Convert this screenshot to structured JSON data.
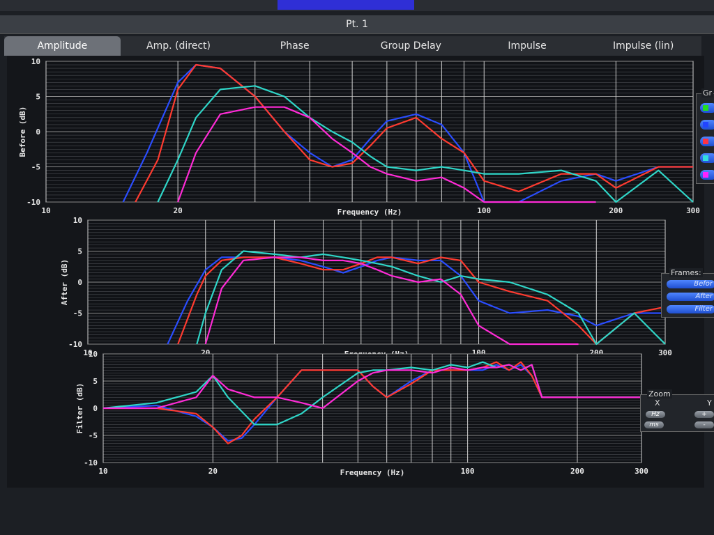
{
  "window": {
    "title": "Pt. 1"
  },
  "tabs": [
    {
      "label": "Amplitude",
      "active": true
    },
    {
      "label": "Amp. (direct)",
      "active": false
    },
    {
      "label": "Phase",
      "active": false
    },
    {
      "label": "Group Delay",
      "active": false
    },
    {
      "label": "Impulse",
      "active": false
    },
    {
      "label": "Impulse (lin)",
      "active": false
    }
  ],
  "graphs_panel": {
    "title": "Gr",
    "swatches": [
      "#22dd22",
      "#2244ff",
      "#ff3344",
      "#33dddd",
      "#ff22ff"
    ]
  },
  "frames_panel": {
    "title": "Frames:",
    "buttons": [
      "Befor",
      "After",
      "Filter"
    ]
  },
  "zoom_panel": {
    "title": "Zoom",
    "x_label": "X",
    "y_label": "Y",
    "x_buttons": [
      "Hz",
      "ms"
    ],
    "y_buttons": [
      "+",
      "-"
    ]
  },
  "chart_data": [
    {
      "type": "line",
      "ylabel": "Before (dB)",
      "xlabel": "Frequency (Hz)",
      "x_scale": "log",
      "xlim": [
        10,
        300
      ],
      "ylim": [
        -10,
        10
      ],
      "x_ticks": [
        "10",
        "20",
        "100",
        "200",
        "300"
      ],
      "y_ticks": [
        "10",
        "5",
        "0",
        "-5",
        "-10"
      ],
      "grid": true,
      "series": [
        {
          "color": "#2a4dff",
          "x": [
            15,
            17,
            20,
            22,
            25,
            30,
            35,
            40,
            45,
            50,
            55,
            60,
            70,
            80,
            90,
            100,
            120,
            150,
            180,
            200,
            250,
            300
          ],
          "y": [
            -10,
            -3,
            7,
            9.5,
            9,
            5,
            0,
            -3,
            -5,
            -4,
            -1,
            1.5,
            2.5,
            1,
            -3,
            -10,
            -10,
            -7,
            -6,
            -7,
            -5,
            -5
          ]
        },
        {
          "color": "#ff3b30",
          "x": [
            16,
            18,
            20,
            22,
            25,
            30,
            35,
            40,
            45,
            50,
            55,
            60,
            70,
            80,
            90,
            100,
            120,
            150,
            180,
            200,
            250,
            300
          ],
          "y": [
            -10,
            -4,
            6,
            9.5,
            9,
            5,
            0,
            -4,
            -5,
            -4.5,
            -2,
            0.5,
            2,
            -1,
            -3,
            -7,
            -8.5,
            -6,
            -6,
            -8,
            -5,
            -5
          ]
        },
        {
          "color": "#2fd6c8",
          "x": [
            18,
            20,
            22,
            25,
            30,
            35,
            40,
            45,
            50,
            55,
            60,
            70,
            80,
            90,
            100,
            120,
            150,
            180,
            200,
            250,
            300
          ],
          "y": [
            -10,
            -4,
            2,
            6,
            6.5,
            5,
            2,
            0,
            -1.5,
            -3.5,
            -5,
            -5.5,
            -5,
            -5.5,
            -6,
            -6,
            -5.5,
            -7,
            -10,
            -5.5,
            -10
          ]
        },
        {
          "color": "#ff2bd6",
          "x": [
            20,
            22,
            25,
            30,
            35,
            40,
            45,
            50,
            55,
            60,
            70,
            80,
            90,
            100,
            120,
            150,
            180
          ],
          "y": [
            -10,
            -3,
            2.5,
            3.5,
            3.5,
            2,
            -1,
            -3,
            -5,
            -6,
            -7,
            -6.5,
            -8,
            -10,
            -10,
            -10,
            -10
          ]
        }
      ]
    },
    {
      "type": "line",
      "ylabel": "After (dB)",
      "xlabel": "Frequency (Hz)",
      "x_scale": "log",
      "xlim": [
        10,
        300
      ],
      "ylim": [
        -10,
        10
      ],
      "x_ticks": [
        "10",
        "20",
        "100",
        "200",
        "300"
      ],
      "y_ticks": [
        "10",
        "5",
        "0",
        "-5",
        "-10"
      ],
      "grid": true,
      "series": [
        {
          "color": "#2a4dff",
          "x": [
            16,
            18,
            20,
            22,
            25,
            30,
            35,
            40,
            45,
            50,
            55,
            60,
            70,
            80,
            90,
            100,
            120,
            150,
            180,
            200,
            250,
            300
          ],
          "y": [
            -10,
            -3,
            2,
            4,
            4,
            4,
            3.5,
            2.5,
            1.5,
            2.5,
            3.5,
            4,
            3.5,
            3.5,
            1,
            -3,
            -5,
            -4.5,
            -5.5,
            -7,
            -5,
            -5
          ]
        },
        {
          "color": "#ff3b30",
          "x": [
            17,
            19,
            20,
            22,
            25,
            30,
            35,
            40,
            45,
            50,
            55,
            60,
            70,
            80,
            90,
            100,
            120,
            150,
            180,
            200,
            250,
            300
          ],
          "y": [
            -10,
            -2,
            1,
            3.5,
            4,
            4,
            3,
            2,
            2,
            3,
            4,
            4,
            3,
            4,
            3.5,
            0,
            -1.5,
            -3,
            -7,
            -10,
            -5,
            -4
          ]
        },
        {
          "color": "#2fd6c8",
          "x": [
            19,
            20,
            22,
            25,
            30,
            35,
            40,
            45,
            50,
            55,
            60,
            70,
            80,
            90,
            100,
            120,
            150,
            180,
            200,
            250,
            300
          ],
          "y": [
            -10,
            -5,
            2,
            5,
            4.5,
            4,
            4.5,
            4,
            3.5,
            3,
            2.5,
            1,
            0,
            1,
            0.5,
            0,
            -2,
            -5,
            -10,
            -5,
            -10
          ]
        },
        {
          "color": "#ff2bd6",
          "x": [
            20,
            22,
            25,
            30,
            35,
            40,
            45,
            50,
            55,
            60,
            70,
            80,
            90,
            100,
            120,
            150,
            180
          ],
          "y": [
            -10,
            -1,
            3.5,
            4,
            4,
            3.5,
            3.5,
            3,
            2,
            1,
            0,
            0.5,
            -2,
            -7,
            -10,
            -10,
            -10
          ]
        }
      ]
    },
    {
      "type": "line",
      "ylabel": "Filter (dB)",
      "xlabel": "Frequency (Hz)",
      "x_scale": "log",
      "xlim": [
        10,
        300
      ],
      "ylim": [
        -10,
        10
      ],
      "x_ticks": [
        "10",
        "20",
        "100",
        "200",
        "300"
      ],
      "y_ticks": [
        "10",
        "5",
        "0",
        "-5",
        "-10"
      ],
      "grid": true,
      "series": [
        {
          "color": "#2a4dff",
          "x": [
            10,
            14,
            18,
            20,
            22,
            24,
            26,
            30,
            35,
            40,
            50,
            55,
            60,
            70,
            80,
            90,
            100,
            110,
            120,
            130,
            140,
            150,
            160,
            180,
            200,
            250,
            300
          ],
          "y": [
            0,
            0.5,
            -1.5,
            -3.5,
            -6,
            -5.5,
            -3,
            2,
            7,
            7,
            7,
            4,
            2,
            5,
            7,
            7,
            7,
            7,
            8,
            7,
            8,
            6,
            2,
            2,
            2,
            2,
            2
          ]
        },
        {
          "color": "#ff3b30",
          "x": [
            10,
            14,
            18,
            20,
            22,
            24,
            26,
            30,
            35,
            40,
            50,
            55,
            60,
            70,
            80,
            90,
            100,
            110,
            120,
            130,
            140,
            150,
            160,
            180,
            200,
            250,
            300
          ],
          "y": [
            0,
            0,
            -1,
            -3.5,
            -6.5,
            -5,
            -2,
            2,
            7,
            7,
            7,
            4,
            2,
            4.5,
            7,
            7,
            7,
            7.5,
            8.5,
            7,
            8.5,
            6,
            2,
            2,
            2,
            2,
            2
          ]
        },
        {
          "color": "#2fd6c8",
          "x": [
            10,
            14,
            18,
            20,
            22,
            26,
            30,
            35,
            40,
            50,
            55,
            60,
            70,
            80,
            90,
            100,
            110,
            120,
            130,
            140,
            150,
            160,
            180,
            200,
            250,
            300
          ],
          "y": [
            0,
            1,
            3,
            6,
            2,
            -3,
            -3,
            -1,
            2,
            6.5,
            7,
            7,
            7.5,
            7,
            8,
            7.5,
            8.5,
            7.5,
            8,
            7,
            8,
            2,
            2,
            2,
            2,
            2
          ]
        },
        {
          "color": "#ff2bd6",
          "x": [
            10,
            14,
            18,
            20,
            22,
            26,
            30,
            35,
            40,
            50,
            55,
            60,
            70,
            80,
            90,
            100,
            110,
            120,
            130,
            140,
            150,
            160,
            180,
            200,
            250,
            300
          ],
          "y": [
            0,
            0,
            2,
            6,
            3.5,
            2,
            2,
            1,
            0,
            5,
            6.5,
            7,
            7,
            6.5,
            7.5,
            7,
            7.5,
            7.5,
            8,
            7,
            8,
            2,
            2,
            2,
            2,
            2
          ]
        }
      ]
    }
  ]
}
